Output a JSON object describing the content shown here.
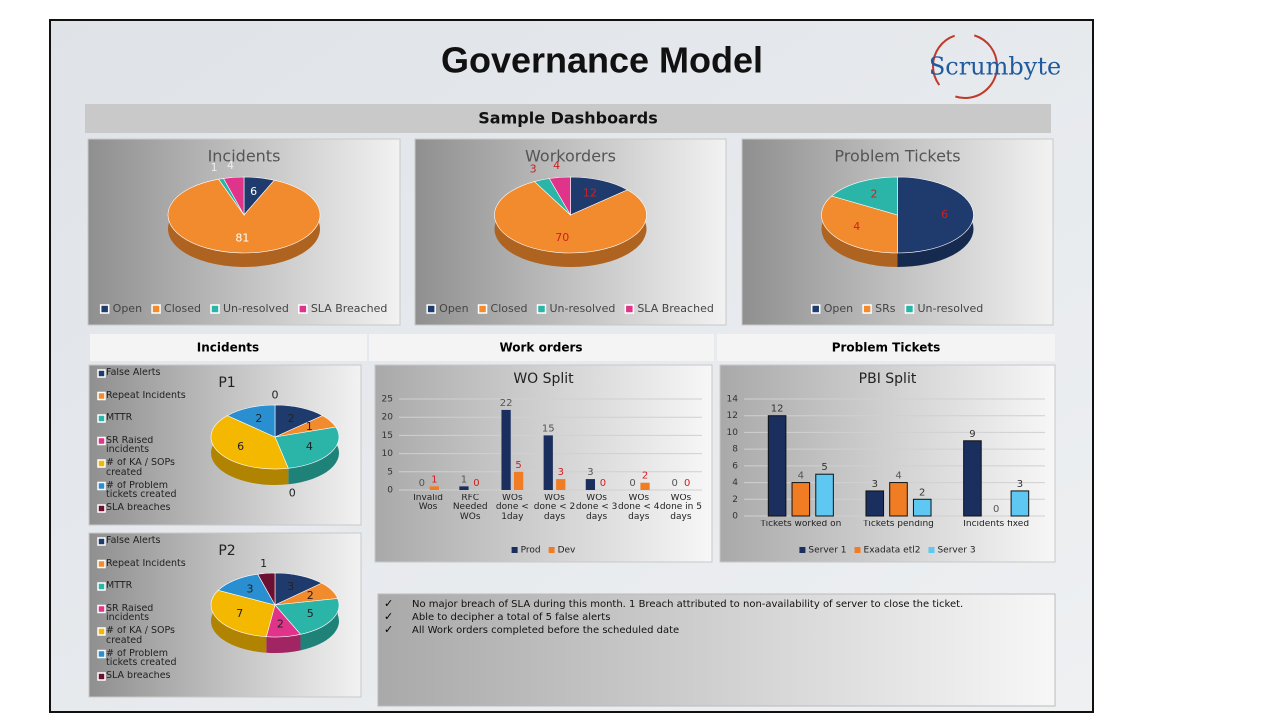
{
  "header": {
    "title": "Governance Model",
    "logo": "Scrumbyte",
    "subtitle": "Sample Dashboards"
  },
  "sections": [
    "Incidents",
    "Work orders",
    "Problem Tickets"
  ],
  "notes": [
    "No major breach of SLA during this month. 1 Breach attributed to non-availability of server to close the ticket.",
    "Able to decipher a total of 5 false alerts",
    "All Work orders completed before the scheduled date"
  ],
  "chart_data": [
    {
      "type": "pie",
      "title": "Incidents",
      "categories": [
        "Open",
        "Closed",
        "Un-resolved",
        "SLA Breached"
      ],
      "values": [
        6,
        81,
        1,
        4
      ],
      "colors": [
        "#1f3b6e",
        "#f28a2e",
        "#2bb5a8",
        "#e0338a"
      ],
      "label_color": "#ffffff",
      "legend": "bottom"
    },
    {
      "type": "pie",
      "title": "Workorders",
      "categories": [
        "Open",
        "Closed",
        "Un-resolved",
        "SLA Breached"
      ],
      "values": [
        12,
        70,
        3,
        4
      ],
      "colors": [
        "#1f3b6e",
        "#f28a2e",
        "#2bb5a8",
        "#e0338a"
      ],
      "label_color": "#d11f1f",
      "legend": "bottom"
    },
    {
      "type": "pie",
      "title": "Problem Tickets",
      "categories": [
        "Open",
        "SRs",
        "Un-resolved"
      ],
      "values": [
        6,
        4,
        2
      ],
      "colors": [
        "#1f3b6e",
        "#f28a2e",
        "#2bb5a8"
      ],
      "label_color": "#d11f1f",
      "legend": "bottom"
    },
    {
      "type": "pie",
      "title": "P1",
      "categories": [
        "False Alerts",
        "Repeat Incidents",
        "MTTR",
        "SR Raised incidents",
        "# of KA / SOPs created",
        "# of Problem tickets created",
        "SLA breaches"
      ],
      "values": [
        2,
        1,
        4,
        0,
        6,
        2,
        0
      ],
      "colors": [
        "#1f3b6e",
        "#f28a2e",
        "#2bb5a8",
        "#e0338a",
        "#f5b800",
        "#2a8fd1",
        "#6b1030"
      ],
      "label_color": "#222222",
      "legend": "left"
    },
    {
      "type": "pie",
      "title": "P2",
      "categories": [
        "False Alerts",
        "Repeat Incidents",
        "MTTR",
        "SR Raised incidents",
        "# of KA / SOPs created",
        "# of Problem tickets created",
        "SLA breaches"
      ],
      "values": [
        3,
        2,
        5,
        2,
        7,
        3,
        1
      ],
      "colors": [
        "#1f3b6e",
        "#f28a2e",
        "#2bb5a8",
        "#e0338a",
        "#f5b800",
        "#2a8fd1",
        "#6b1030"
      ],
      "label_color": "#222222",
      "legend": "left"
    },
    {
      "type": "bar",
      "title": "WO Split",
      "categories": [
        "Invalid Wos",
        "RFC Needed WOs",
        "WOs done < 1day",
        "WOs done < 2 days",
        "WOs done < 3 days",
        "WOs done < 4 days",
        "WOs done in 5 days"
      ],
      "series": [
        {
          "name": "Prod",
          "color": "#1a2f5e",
          "label_color": "#555555",
          "values": [
            0,
            1,
            22,
            15,
            3,
            0,
            0
          ]
        },
        {
          "name": "Dev",
          "color": "#f07d24",
          "label_color": "#d11f1f",
          "values": [
            1,
            0,
            5,
            3,
            0,
            2,
            0
          ]
        }
      ],
      "ylim": [
        0,
        25
      ],
      "yticks": [
        0,
        5,
        10,
        15,
        20,
        25
      ],
      "grid": true,
      "legend": "bottom"
    },
    {
      "type": "bar",
      "title": "PBI Split",
      "categories": [
        "Tickets worked on",
        "Tickets pending",
        "Incidents fixed"
      ],
      "series": [
        {
          "name": "Server 1",
          "color": "#1a2f5e",
          "label_color": "#333333",
          "values": [
            12,
            3,
            9
          ]
        },
        {
          "name": "Exadata etl2",
          "color": "#f07d24",
          "label_color": "#555555",
          "values": [
            4,
            4,
            0
          ]
        },
        {
          "name": "Server 3",
          "color": "#5ec8f2",
          "label_color": "#333333",
          "values": [
            5,
            2,
            3
          ]
        }
      ],
      "ylim": [
        0,
        14
      ],
      "yticks": [
        0,
        2,
        4,
        6,
        8,
        10,
        12,
        14
      ],
      "grid": true,
      "legend": "bottom"
    }
  ]
}
